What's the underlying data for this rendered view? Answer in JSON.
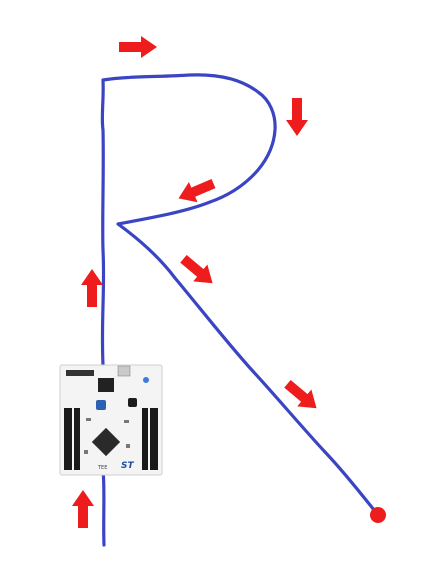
{
  "diagram": {
    "path_color": "#3b45c4",
    "arrow_color": "#ee1c1c",
    "endpoint_color": "#ee1c1c",
    "board": {
      "pcb_color": "#f4f4f4",
      "header_color": "#1a1a1a",
      "brand_logo": "ST",
      "series_text": "TEE"
    },
    "arrows": [
      {
        "direction": "right"
      },
      {
        "direction": "down"
      },
      {
        "direction": "down-left"
      },
      {
        "direction": "down-right"
      },
      {
        "direction": "up"
      },
      {
        "direction": "down-right"
      },
      {
        "direction": "up"
      }
    ]
  }
}
